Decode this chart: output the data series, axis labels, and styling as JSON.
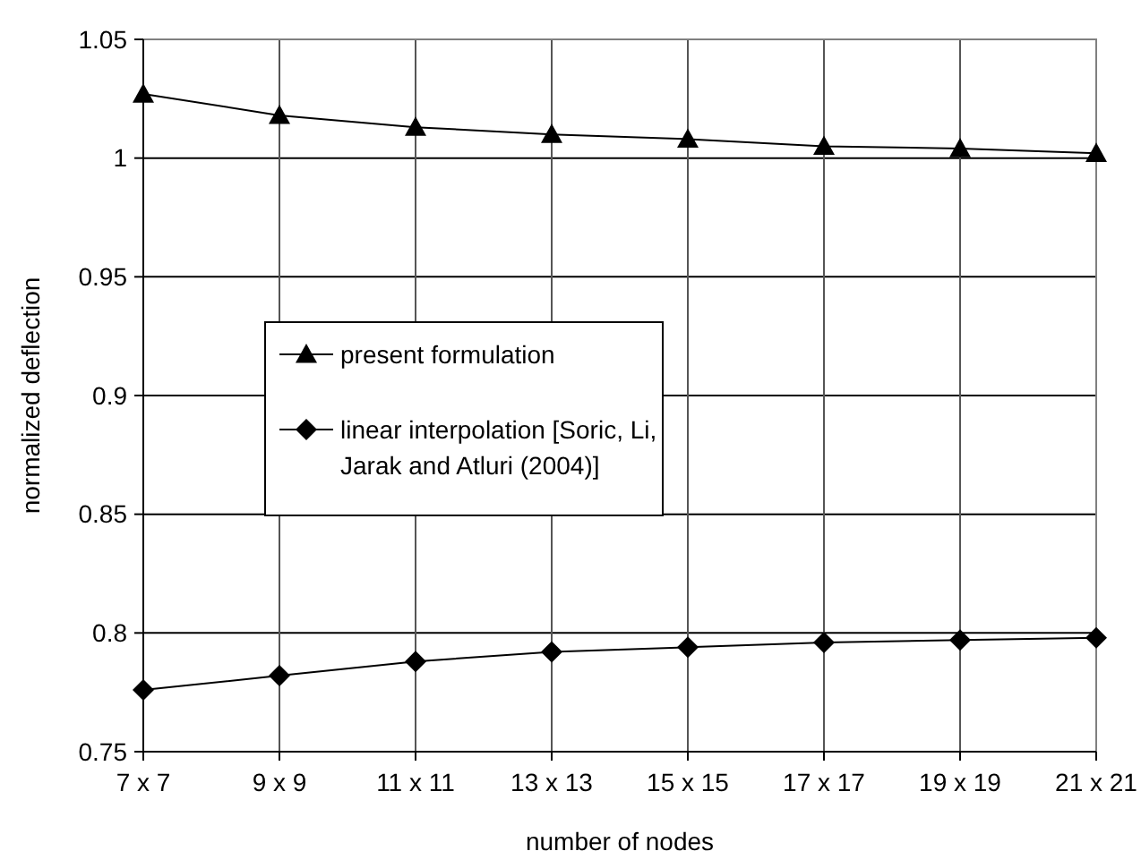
{
  "chart_data": {
    "type": "line",
    "xlabel": "number of nodes",
    "ylabel": "normalized deflection",
    "categories": [
      "7 x 7",
      "9 x 9",
      "11 x 11",
      "13 x 13",
      "15 x 15",
      "17 x 17",
      "19 x 19",
      "21 x 21"
    ],
    "series": [
      {
        "name": "present formulation",
        "color": "#000000",
        "marker": "triangle",
        "values": [
          1.027,
          1.018,
          1.013,
          1.01,
          1.008,
          1.005,
          1.004,
          1.002
        ]
      },
      {
        "name": "linear interpolation [Soric, Li, Jarak and Atluri (2004)]",
        "color": "#000000",
        "marker": "diamond",
        "values": [
          0.776,
          0.782,
          0.788,
          0.792,
          0.794,
          0.796,
          0.797,
          0.798
        ]
      }
    ],
    "ylim": [
      0.75,
      1.05
    ],
    "yticks": [
      0.75,
      0.8,
      0.85,
      0.9,
      0.95,
      1,
      1.05
    ],
    "grid": true,
    "legend": "center",
    "line_style": "solid"
  }
}
